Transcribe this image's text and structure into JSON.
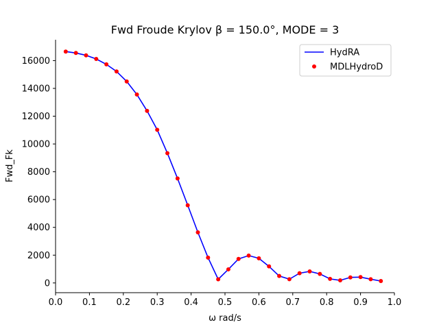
{
  "chart_data": {
    "type": "line",
    "title": "Fwd Froude Krylov β = 150.0°, MODE = 3",
    "xlabel": "ω rad/s",
    "ylabel": "Fwd_Fk",
    "xlim": [
      0.0,
      1.0
    ],
    "ylim": [
      -700,
      17500
    ],
    "xticks": [
      "0.0",
      "0.1",
      "0.2",
      "0.3",
      "0.4",
      "0.5",
      "0.6",
      "0.7",
      "0.8",
      "0.9",
      "1.0"
    ],
    "xtick_values": [
      0.0,
      0.1,
      0.2,
      0.3,
      0.4,
      0.5,
      0.6,
      0.7,
      0.8,
      0.9,
      1.0
    ],
    "yticks": [
      "0",
      "2000",
      "4000",
      "6000",
      "8000",
      "10000",
      "12000",
      "14000",
      "16000"
    ],
    "ytick_values": [
      0,
      2000,
      4000,
      6000,
      8000,
      10000,
      12000,
      14000,
      16000
    ],
    "legend_position": "top-right",
    "series": [
      {
        "name": "HydRA",
        "style": "line",
        "color": "#0000ff",
        "x": [
          0.03,
          0.06,
          0.09,
          0.12,
          0.15,
          0.18,
          0.21,
          0.24,
          0.27,
          0.3,
          0.33,
          0.36,
          0.39,
          0.42,
          0.45,
          0.48,
          0.51,
          0.54,
          0.57,
          0.6,
          0.63,
          0.66,
          0.69,
          0.72,
          0.75,
          0.78,
          0.81,
          0.84,
          0.87,
          0.9,
          0.93,
          0.96
        ],
        "y": [
          16650,
          16550,
          16380,
          16120,
          15730,
          15220,
          14500,
          13560,
          12380,
          11020,
          9340,
          7520,
          5590,
          3640,
          1820,
          260,
          980,
          1730,
          1970,
          1770,
          1190,
          500,
          270,
          700,
          830,
          650,
          290,
          190,
          400,
          420,
          270,
          140
        ]
      },
      {
        "name": "MDLHydroD",
        "style": "markers",
        "color": "#ff0000",
        "x": [
          0.03,
          0.06,
          0.09,
          0.12,
          0.15,
          0.18,
          0.21,
          0.24,
          0.27,
          0.3,
          0.33,
          0.36,
          0.39,
          0.42,
          0.45,
          0.48,
          0.51,
          0.54,
          0.57,
          0.6,
          0.63,
          0.66,
          0.69,
          0.72,
          0.75,
          0.78,
          0.81,
          0.84,
          0.87,
          0.9,
          0.93,
          0.96
        ],
        "y": [
          16650,
          16550,
          16380,
          16120,
          15730,
          15220,
          14500,
          13560,
          12380,
          11020,
          9340,
          7520,
          5590,
          3640,
          1820,
          260,
          980,
          1730,
          1970,
          1770,
          1190,
          500,
          270,
          700,
          830,
          650,
          290,
          190,
          400,
          420,
          270,
          140
        ]
      }
    ]
  }
}
